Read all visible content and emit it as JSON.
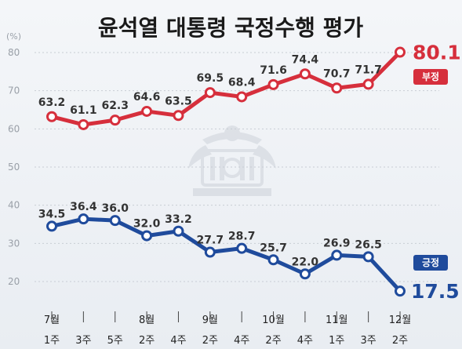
{
  "title": "윤석열 대통령 국정수행 평가",
  "chart_data": {
    "type": "line",
    "unit_label": "(%)",
    "ylim": [
      15,
      85
    ],
    "yticks": [
      20,
      30,
      40,
      50,
      60,
      70,
      80
    ],
    "grid": true,
    "months": [
      {
        "label": "7월",
        "index": 0
      },
      {
        "label": "8월",
        "index": 3
      },
      {
        "label": "9월",
        "index": 5
      },
      {
        "label": "10월",
        "index": 7
      },
      {
        "label": "11월",
        "index": 9
      },
      {
        "label": "12월",
        "index": 11
      }
    ],
    "categories": [
      "1주",
      "3주",
      "5주",
      "2주",
      "4주",
      "2주",
      "4주",
      "2주",
      "4주",
      "1주",
      "3주",
      "2주"
    ],
    "series": [
      {
        "name": "부정",
        "color": "#d62f3c",
        "values": [
          63.2,
          61.1,
          62.3,
          64.6,
          63.5,
          69.5,
          68.4,
          71.6,
          74.4,
          70.7,
          71.7,
          80.1
        ]
      },
      {
        "name": "긍정",
        "color": "#1f4b9c",
        "values": [
          34.5,
          36.4,
          36.0,
          32.0,
          33.2,
          27.7,
          28.7,
          25.7,
          22.0,
          26.9,
          26.5,
          17.5
        ]
      }
    ]
  }
}
